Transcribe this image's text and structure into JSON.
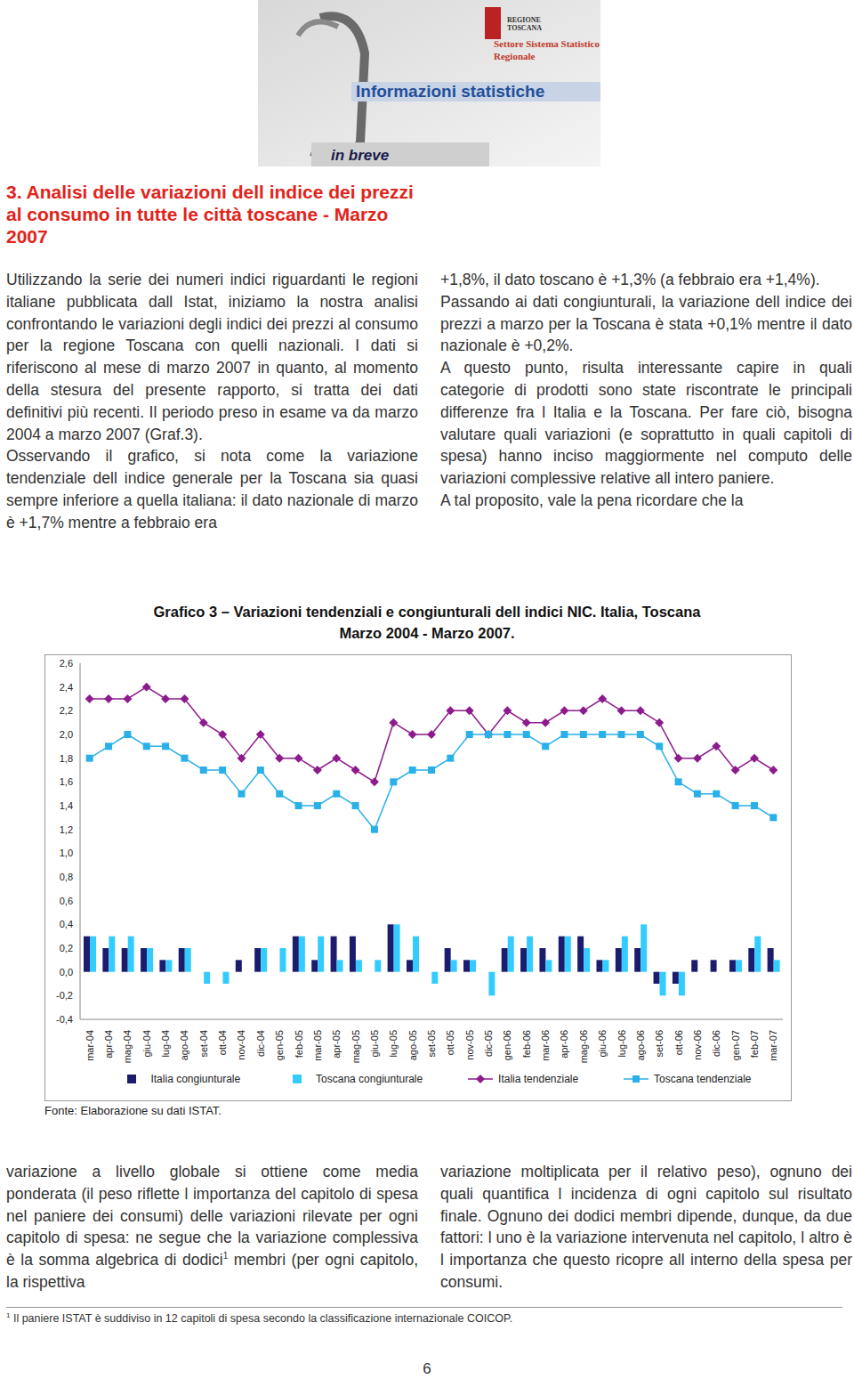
{
  "header": {
    "region": "REGIONE TOSCANA",
    "office": "Settore Sistema Statistico Regionale",
    "series": "Informazioni statistiche",
    "edition": "in breve"
  },
  "section": {
    "title": "3. Analisi delle variazioni dell indice dei prezzi al consumo in tutte le città toscane - Marzo 2007",
    "columns": [
      [
        "Utilizzando la serie dei numeri indici riguardanti le regioni italiane pubblicata dall Istat, iniziamo la nostra analisi confrontando le variazioni degli indici dei prezzi al consumo per la regione Toscana con quelli nazionali. I dati si riferiscono al mese di marzo 2007 in quanto, al momento della stesura del presente rapporto, si tratta dei dati definitivi più recenti. Il periodo preso in esame va da marzo 2004 a marzo 2007 (Graf.3).",
        "Osservando il grafico, si nota come la variazione tendenziale dell indice generale per la Toscana sia quasi sempre inferiore a quella italiana: il dato nazionale di marzo è +1,7% mentre a febbraio era"
      ],
      [
        "+1,8%, il dato toscano è +1,3% (a febbraio era +1,4%).",
        "Passando ai dati congiunturali, la variazione dell indice dei prezzi a marzo per la Toscana è stata +0,1% mentre il dato nazionale è +0,2%.",
        "A questo punto, risulta interessante capire in quali categorie di prodotti sono state riscontrate le principali differenze fra l Italia e la Toscana. Per fare ciò, bisogna valutare quali variazioni (e soprattutto in quali capitoli di spesa) hanno inciso maggiormente nel computo delle variazioni complessive relative all intero paniere.",
        "A tal proposito, vale la pena ricordare che la"
      ]
    ]
  },
  "chart_data": {
    "type": "combo",
    "title": "Grafico 3 – Variazioni tendenziali e congiunturali dell indici NIC. Italia, Toscana",
    "subtitle": "Marzo 2004 - Marzo 2007.",
    "categories": [
      "mar-04",
      "apr-04",
      "mag-04",
      "giu-04",
      "lug-04",
      "ago-04",
      "set-04",
      "ott-04",
      "nov-04",
      "dic-04",
      "gen-05",
      "feb-05",
      "mar-05",
      "apr-05",
      "mag-05",
      "giu-05",
      "lug-05",
      "ago-05",
      "set-05",
      "ott-05",
      "nov-05",
      "dic-05",
      "gen-06",
      "feb-06",
      "mar-06",
      "apr-06",
      "mag-06",
      "giu-06",
      "lug-06",
      "ago-06",
      "set-06",
      "ott-06",
      "nov-06",
      "dic-06",
      "gen-07",
      "feb-07",
      "mar-07"
    ],
    "series": [
      {
        "name": "Italia congiunturale",
        "type": "bar",
        "color": "#1c1c6e",
        "values": [
          0.3,
          0.2,
          0.2,
          0.2,
          0.1,
          0.2,
          0,
          0,
          0.1,
          0.2,
          0,
          0.3,
          0.1,
          0.3,
          0.3,
          0,
          0.4,
          0.1,
          0,
          0.2,
          0.1,
          0,
          0.2,
          0.2,
          0.2,
          0.3,
          0.3,
          0.1,
          0.2,
          0.2,
          -0.1,
          -0.1,
          0.1,
          0.1,
          0.1,
          0.2,
          0.2
        ]
      },
      {
        "name": "Toscana congiunturale",
        "type": "bar",
        "color": "#33ccff",
        "values": [
          0.3,
          0.3,
          0.3,
          0.2,
          0.1,
          0.2,
          -0.1,
          -0.1,
          0,
          0.2,
          0.2,
          0.3,
          0.3,
          0.1,
          0.1,
          0.1,
          0.4,
          0.3,
          -0.1,
          0.1,
          0.1,
          -0.2,
          0.3,
          0.3,
          0.1,
          0.3,
          0.2,
          0.1,
          0.3,
          0.4,
          -0.2,
          -0.2,
          0,
          0,
          0.1,
          0.3,
          0.1
        ]
      },
      {
        "name": "Italia tendenziale",
        "type": "line",
        "color": "#8e1b8e",
        "marker": "diamond",
        "values": [
          2.3,
          2.3,
          2.3,
          2.4,
          2.3,
          2.3,
          2.1,
          2.0,
          1.8,
          2.0,
          1.8,
          1.8,
          1.7,
          1.8,
          1.7,
          1.6,
          2.1,
          2.0,
          2.0,
          2.2,
          2.2,
          2.0,
          2.2,
          2.1,
          2.1,
          2.2,
          2.2,
          2.3,
          2.2,
          2.2,
          2.1,
          1.8,
          1.8,
          1.9,
          1.7,
          1.8,
          1.7
        ]
      },
      {
        "name": "Toscana tendenziale",
        "type": "line",
        "color": "#2ab0e8",
        "marker": "square",
        "values": [
          1.8,
          1.9,
          2.0,
          1.9,
          1.9,
          1.8,
          1.7,
          1.7,
          1.5,
          1.7,
          1.5,
          1.4,
          1.4,
          1.5,
          1.4,
          1.2,
          1.6,
          1.7,
          1.7,
          1.8,
          2.0,
          2.0,
          2.0,
          2.0,
          1.9,
          2.0,
          2.0,
          2.0,
          2.0,
          2.0,
          1.9,
          1.6,
          1.5,
          1.5,
          1.4,
          1.4,
          1.3
        ]
      }
    ],
    "ylim": [
      -0.4,
      2.6
    ],
    "yticks": [
      {
        "value": -0.4,
        "label": "-0,4"
      },
      {
        "value": -0.2,
        "label": "-0,2"
      },
      {
        "value": 0,
        "label": "0,0"
      },
      {
        "value": 0.2,
        "label": "0,2"
      },
      {
        "value": 0.4,
        "label": "0,4"
      },
      {
        "value": 0.6,
        "label": "0,6"
      },
      {
        "value": 0.8,
        "label": "0,8"
      },
      {
        "value": 1.0,
        "label": "1,0"
      },
      {
        "value": 1.2,
        "label": "1,2"
      },
      {
        "value": 1.4,
        "label": "1,4"
      },
      {
        "value": 1.6,
        "label": "1,6"
      },
      {
        "value": 1.8,
        "label": "1,8"
      },
      {
        "value": 2.0,
        "label": "2,0"
      },
      {
        "value": 2.2,
        "label": "2,2"
      },
      {
        "value": 2.4,
        "label": "2,4"
      },
      {
        "value": 2.6,
        "label": "2,6"
      }
    ],
    "grid": false,
    "legend": "bottom"
  },
  "source": "Fonte: Elaborazione su dati ISTAT.",
  "continuation": {
    "left": {
      "text_before": "variazione a livello globale si ottiene come media ponderata (il peso riflette l importanza del capitolo di spesa nel paniere dei consumi) delle variazioni rilevate per ogni capitolo di spesa: ne segue che la variazione complessiva è la somma algebrica di dodici",
      "mark": "1",
      "text_after": " membri (per ogni capitolo, la rispettiva"
    },
    "right": "variazione moltiplicata per il relativo peso), ognuno dei quali quantifica l incidenza di ogni capitolo sul risultato finale. Ognuno dei dodici membri dipende, dunque, da due fattori: l uno è la variazione intervenuta nel capitolo, l altro è l importanza che questo ricopre all interno della spesa per consumi."
  },
  "footnote": {
    "mark": "1",
    "text": "Il paniere ISTAT è suddiviso in 12 capitoli di spesa secondo la classificazione internazionale COICOP."
  },
  "page_number": "6"
}
